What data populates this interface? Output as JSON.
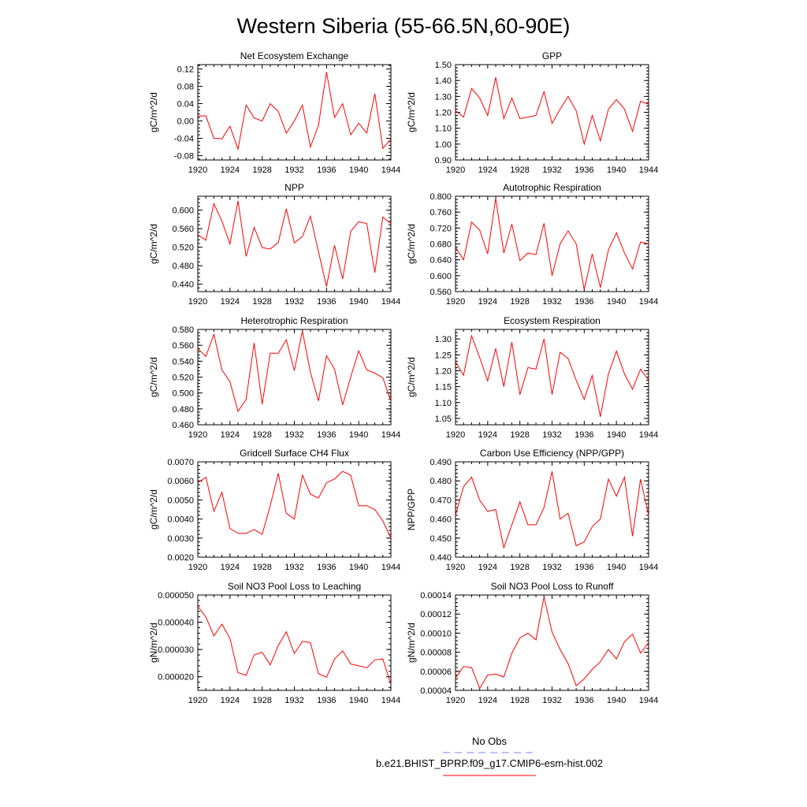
{
  "title": "Western Siberia (55-66.5N,60-90E)",
  "legend": {
    "entries": [
      {
        "label": "No Obs",
        "color": "#8080ff",
        "style": "dashed"
      },
      {
        "label": "b.e21.BHIST_BPRP.f09_g17.CMIP6-esm-hist.002",
        "color": "#ff0000",
        "style": "solid"
      }
    ]
  },
  "chart_data": [
    {
      "type": "line",
      "title": "Net Ecosystem Exchange",
      "ylabel": "gC/m^2/d",
      "xlim": [
        1920,
        1944
      ],
      "ylim": [
        -0.09,
        0.13
      ],
      "xticks": [
        "1920",
        "1924",
        "1928",
        "1932",
        "1936",
        "1940",
        "1944"
      ],
      "yticks": [
        {
          "v": -0.08,
          "t": "-0.08"
        },
        {
          "v": -0.04,
          "t": "-0.04"
        },
        {
          "v": 0.0,
          "t": "0.00"
        },
        {
          "v": 0.04,
          "t": "0.04"
        },
        {
          "v": 0.08,
          "t": "0.08"
        },
        {
          "v": 0.12,
          "t": "0.12"
        }
      ],
      "x": [
        1920,
        1921,
        1922,
        1923,
        1924,
        1925,
        1926,
        1927,
        1928,
        1929,
        1930,
        1931,
        1932,
        1933,
        1934,
        1935,
        1936,
        1937,
        1938,
        1939,
        1940,
        1941,
        1942,
        1943,
        1944
      ],
      "series": [
        {
          "color": "#ff0000",
          "values": [
            0.011,
            0.012,
            -0.04,
            -0.041,
            -0.012,
            -0.065,
            0.037,
            0.007,
            0.0,
            0.04,
            0.022,
            -0.028,
            0.0,
            0.037,
            -0.06,
            -0.01,
            0.113,
            0.008,
            0.04,
            -0.032,
            -0.005,
            -0.028,
            0.063,
            -0.063,
            -0.042
          ]
        }
      ]
    },
    {
      "type": "line",
      "title": "GPP",
      "ylabel": "gC/m^2/d",
      "xlim": [
        1920,
        1944
      ],
      "ylim": [
        0.9,
        1.5
      ],
      "xticks": [
        "1920",
        "1924",
        "1928",
        "1932",
        "1936",
        "1940",
        "1944"
      ],
      "yticks": [
        {
          "v": 0.9,
          "t": "0.90"
        },
        {
          "v": 1.0,
          "t": "1.00"
        },
        {
          "v": 1.1,
          "t": "1.10"
        },
        {
          "v": 1.2,
          "t": "1.20"
        },
        {
          "v": 1.3,
          "t": "1.30"
        },
        {
          "v": 1.4,
          "t": "1.40"
        },
        {
          "v": 1.5,
          "t": "1.50"
        }
      ],
      "x": [
        1920,
        1921,
        1922,
        1923,
        1924,
        1925,
        1926,
        1927,
        1928,
        1929,
        1930,
        1931,
        1932,
        1933,
        1934,
        1935,
        1936,
        1937,
        1938,
        1939,
        1940,
        1941,
        1942,
        1943,
        1944
      ],
      "series": [
        {
          "color": "#ff0000",
          "values": [
            1.21,
            1.17,
            1.35,
            1.29,
            1.18,
            1.42,
            1.16,
            1.29,
            1.16,
            1.17,
            1.18,
            1.33,
            1.13,
            1.22,
            1.3,
            1.21,
            1.0,
            1.18,
            1.02,
            1.22,
            1.28,
            1.22,
            1.08,
            1.27,
            1.25
          ]
        }
      ]
    },
    {
      "type": "line",
      "title": "NPP",
      "ylabel": "gC/m^2/d",
      "xlim": [
        1920,
        1944
      ],
      "ylim": [
        0.424,
        0.63
      ],
      "xticks": [
        "1920",
        "1924",
        "1928",
        "1932",
        "1936",
        "1940",
        "1944"
      ],
      "yticks": [
        {
          "v": 0.44,
          "t": "0.440"
        },
        {
          "v": 0.48,
          "t": "0.480"
        },
        {
          "v": 0.52,
          "t": "0.520"
        },
        {
          "v": 0.56,
          "t": "0.560"
        },
        {
          "v": 0.6,
          "t": "0.600"
        }
      ],
      "x": [
        1920,
        1921,
        1922,
        1923,
        1924,
        1925,
        1926,
        1927,
        1928,
        1929,
        1930,
        1931,
        1932,
        1933,
        1934,
        1935,
        1936,
        1937,
        1938,
        1939,
        1940,
        1941,
        1942,
        1943,
        1944
      ],
      "series": [
        {
          "color": "#ff0000",
          "values": [
            0.547,
            0.535,
            0.614,
            0.576,
            0.527,
            0.62,
            0.5,
            0.563,
            0.519,
            0.516,
            0.53,
            0.603,
            0.529,
            0.543,
            0.587,
            0.51,
            0.435,
            0.524,
            0.451,
            0.554,
            0.575,
            0.571,
            0.465,
            0.585,
            0.571
          ]
        }
      ]
    },
    {
      "type": "line",
      "title": "Autotrophic Respiration",
      "ylabel": "gC/m^2/d",
      "xlim": [
        1920,
        1944
      ],
      "ylim": [
        0.56,
        0.8
      ],
      "xticks": [
        "1920",
        "1924",
        "1928",
        "1932",
        "1936",
        "1940",
        "1944"
      ],
      "yticks": [
        {
          "v": 0.56,
          "t": "0.560"
        },
        {
          "v": 0.6,
          "t": "0.600"
        },
        {
          "v": 0.64,
          "t": "0.640"
        },
        {
          "v": 0.68,
          "t": "0.680"
        },
        {
          "v": 0.72,
          "t": "0.720"
        },
        {
          "v": 0.76,
          "t": "0.760"
        },
        {
          "v": 0.8,
          "t": "0.800"
        }
      ],
      "x": [
        1920,
        1921,
        1922,
        1923,
        1924,
        1925,
        1926,
        1927,
        1928,
        1929,
        1930,
        1931,
        1932,
        1933,
        1934,
        1935,
        1936,
        1937,
        1938,
        1939,
        1940,
        1941,
        1942,
        1943,
        1944
      ],
      "series": [
        {
          "color": "#ff0000",
          "values": [
            0.672,
            0.64,
            0.735,
            0.715,
            0.655,
            0.795,
            0.657,
            0.73,
            0.638,
            0.657,
            0.653,
            0.732,
            0.6,
            0.68,
            0.713,
            0.68,
            0.565,
            0.655,
            0.57,
            0.665,
            0.708,
            0.657,
            0.617,
            0.685,
            0.68
          ]
        }
      ]
    },
    {
      "type": "line",
      "title": "Heterotrophic Respiration",
      "ylabel": "gC/m^2/d",
      "xlim": [
        1920,
        1944
      ],
      "ylim": [
        0.46,
        0.58
      ],
      "xticks": [
        "1920",
        "1924",
        "1928",
        "1932",
        "1936",
        "1940",
        "1944"
      ],
      "yticks": [
        {
          "v": 0.46,
          "t": "0.460"
        },
        {
          "v": 0.48,
          "t": "0.480"
        },
        {
          "v": 0.5,
          "t": "0.500"
        },
        {
          "v": 0.52,
          "t": "0.520"
        },
        {
          "v": 0.54,
          "t": "0.540"
        },
        {
          "v": 0.56,
          "t": "0.560"
        },
        {
          "v": 0.58,
          "t": "0.580"
        }
      ],
      "x": [
        1920,
        1921,
        1922,
        1923,
        1924,
        1925,
        1926,
        1927,
        1928,
        1929,
        1930,
        1931,
        1932,
        1933,
        1934,
        1935,
        1936,
        1937,
        1938,
        1939,
        1940,
        1941,
        1942,
        1943,
        1944
      ],
      "series": [
        {
          "color": "#ff0000",
          "values": [
            0.556,
            0.546,
            0.574,
            0.529,
            0.514,
            0.477,
            0.492,
            0.563,
            0.486,
            0.55,
            0.55,
            0.567,
            0.528,
            0.578,
            0.526,
            0.49,
            0.547,
            0.53,
            0.485,
            0.52,
            0.553,
            0.529,
            0.525,
            0.519,
            0.49
          ]
        }
      ]
    },
    {
      "type": "line",
      "title": "Ecosystem Respiration",
      "ylabel": "gC/m^2/d",
      "xlim": [
        1920,
        1944
      ],
      "ylim": [
        1.03,
        1.33
      ],
      "xticks": [
        "1920",
        "1924",
        "1928",
        "1932",
        "1936",
        "1940",
        "1944"
      ],
      "yticks": [
        {
          "v": 1.05,
          "t": "1.05"
        },
        {
          "v": 1.1,
          "t": "1.10"
        },
        {
          "v": 1.15,
          "t": "1.15"
        },
        {
          "v": 1.2,
          "t": "1.20"
        },
        {
          "v": 1.25,
          "t": "1.25"
        },
        {
          "v": 1.3,
          "t": "1.30"
        }
      ],
      "x": [
        1920,
        1921,
        1922,
        1923,
        1924,
        1925,
        1926,
        1927,
        1928,
        1929,
        1930,
        1931,
        1932,
        1933,
        1934,
        1935,
        1936,
        1937,
        1938,
        1939,
        1940,
        1941,
        1942,
        1943,
        1944
      ],
      "series": [
        {
          "color": "#ff0000",
          "values": [
            1.228,
            1.186,
            1.31,
            1.242,
            1.168,
            1.27,
            1.15,
            1.29,
            1.125,
            1.21,
            1.205,
            1.3,
            1.125,
            1.258,
            1.238,
            1.17,
            1.11,
            1.185,
            1.055,
            1.19,
            1.262,
            1.19,
            1.142,
            1.205,
            1.17
          ]
        }
      ]
    },
    {
      "type": "line",
      "title": "Gridcell Surface CH4 Flux",
      "ylabel": "gC/m^2/d",
      "xlim": [
        1920,
        1944
      ],
      "ylim": [
        0.002,
        0.007
      ],
      "xticks": [
        "1920",
        "1924",
        "1928",
        "1932",
        "1936",
        "1940",
        "1944"
      ],
      "yticks": [
        {
          "v": 0.002,
          "t": "0.0020"
        },
        {
          "v": 0.003,
          "t": "0.0030"
        },
        {
          "v": 0.004,
          "t": "0.0040"
        },
        {
          "v": 0.005,
          "t": "0.0050"
        },
        {
          "v": 0.006,
          "t": "0.0060"
        },
        {
          "v": 0.007,
          "t": "0.0070"
        }
      ],
      "x": [
        1920,
        1921,
        1922,
        1923,
        1924,
        1925,
        1926,
        1927,
        1928,
        1929,
        1930,
        1931,
        1932,
        1933,
        1934,
        1935,
        1936,
        1937,
        1938,
        1939,
        1940,
        1941,
        1942,
        1943,
        1944
      ],
      "series": [
        {
          "color": "#ff0000",
          "values": [
            0.0059,
            0.0062,
            0.0044,
            0.0054,
            0.0035,
            0.00325,
            0.00325,
            0.00345,
            0.0032,
            0.0047,
            0.0064,
            0.0043,
            0.004,
            0.0063,
            0.0053,
            0.0051,
            0.0059,
            0.0061,
            0.0065,
            0.0063,
            0.0047,
            0.0047,
            0.0045,
            0.0039,
            0.003
          ]
        }
      ]
    },
    {
      "type": "line",
      "title": "Carbon Use Efficiency (NPP/GPP)",
      "ylabel": "NPP/GPP",
      "xlim": [
        1920,
        1944
      ],
      "ylim": [
        0.44,
        0.49
      ],
      "xticks": [
        "1920",
        "1924",
        "1928",
        "1932",
        "1936",
        "1940",
        "1944"
      ],
      "yticks": [
        {
          "v": 0.44,
          "t": "0.440"
        },
        {
          "v": 0.45,
          "t": "0.450"
        },
        {
          "v": 0.46,
          "t": "0.460"
        },
        {
          "v": 0.47,
          "t": "0.470"
        },
        {
          "v": 0.48,
          "t": "0.480"
        },
        {
          "v": 0.49,
          "t": "0.490"
        }
      ],
      "x": [
        1920,
        1921,
        1922,
        1923,
        1924,
        1925,
        1926,
        1927,
        1928,
        1929,
        1930,
        1931,
        1932,
        1933,
        1934,
        1935,
        1936,
        1937,
        1938,
        1939,
        1940,
        1941,
        1942,
        1943,
        1944
      ],
      "series": [
        {
          "color": "#ff0000",
          "values": [
            0.462,
            0.477,
            0.482,
            0.47,
            0.464,
            0.465,
            0.445,
            0.457,
            0.469,
            0.457,
            0.457,
            0.466,
            0.485,
            0.46,
            0.463,
            0.446,
            0.448,
            0.456,
            0.46,
            0.481,
            0.472,
            0.482,
            0.451,
            0.481,
            0.462
          ]
        }
      ]
    },
    {
      "type": "line",
      "title": "Soil NO3 Pool Loss to Leaching",
      "ylabel": "gN/m^2/d",
      "xlim": [
        1920,
        1944
      ],
      "ylim": [
        1.5e-05,
        5e-05
      ],
      "xticks": [
        "1920",
        "1924",
        "1928",
        "1932",
        "1936",
        "1940",
        "1944"
      ],
      "yticks": [
        {
          "v": 2e-05,
          "t": "0.000020"
        },
        {
          "v": 3e-05,
          "t": "0.000030"
        },
        {
          "v": 4e-05,
          "t": "0.000040"
        },
        {
          "v": 5e-05,
          "t": "0.000050"
        }
      ],
      "x": [
        1920,
        1921,
        1922,
        1923,
        1924,
        1925,
        1926,
        1927,
        1928,
        1929,
        1930,
        1931,
        1932,
        1933,
        1934,
        1935,
        1936,
        1937,
        1938,
        1939,
        1940,
        1941,
        1942,
        1943,
        1944
      ],
      "series": [
        {
          "color": "#ff0000",
          "values": [
            4.58e-05,
            4.2e-05,
            3.5e-05,
            3.93e-05,
            3.4e-05,
            2.15e-05,
            2.05e-05,
            2.8e-05,
            2.9e-05,
            2.43e-05,
            3.15e-05,
            3.65e-05,
            2.85e-05,
            3.3e-05,
            3.25e-05,
            2.12e-05,
            1.98e-05,
            2.65e-05,
            2.95e-05,
            2.47e-05,
            2.4e-05,
            2.33e-05,
            2.62e-05,
            2.65e-05,
            1.72e-05
          ]
        }
      ]
    },
    {
      "type": "line",
      "title": "Soil NO3 Pool Loss to Runoff",
      "ylabel": "gN/m^2/d",
      "xlim": [
        1920,
        1944
      ],
      "ylim": [
        4e-05,
        0.00014
      ],
      "xticks": [
        "1920",
        "1924",
        "1928",
        "1932",
        "1936",
        "1940",
        "1944"
      ],
      "yticks": [
        {
          "v": 4e-05,
          "t": "0.00004"
        },
        {
          "v": 6e-05,
          "t": "0.00006"
        },
        {
          "v": 8e-05,
          "t": "0.00008"
        },
        {
          "v": 0.0001,
          "t": "0.00010"
        },
        {
          "v": 0.00012,
          "t": "0.00012"
        },
        {
          "v": 0.00014,
          "t": "0.00014"
        }
      ],
      "x": [
        1920,
        1921,
        1922,
        1923,
        1924,
        1925,
        1926,
        1927,
        1928,
        1929,
        1930,
        1931,
        1932,
        1933,
        1934,
        1935,
        1936,
        1937,
        1938,
        1939,
        1940,
        1941,
        1942,
        1943,
        1944
      ],
      "series": [
        {
          "color": "#ff0000",
          "values": [
            5.3e-05,
            6.5e-05,
            6.4e-05,
            4.2e-05,
            5.6e-05,
            5.7e-05,
            5.4e-05,
            7.9e-05,
            9.5e-05,
            0.0001,
            9.3e-05,
            0.000138,
            0.000101,
            8.3e-05,
            6.8e-05,
            4.5e-05,
            5.2e-05,
            6.2e-05,
            7e-05,
            8.3e-05,
            7.3e-05,
            9.1e-05,
            9.9e-05,
            7.9e-05,
            9e-05
          ]
        }
      ]
    }
  ]
}
